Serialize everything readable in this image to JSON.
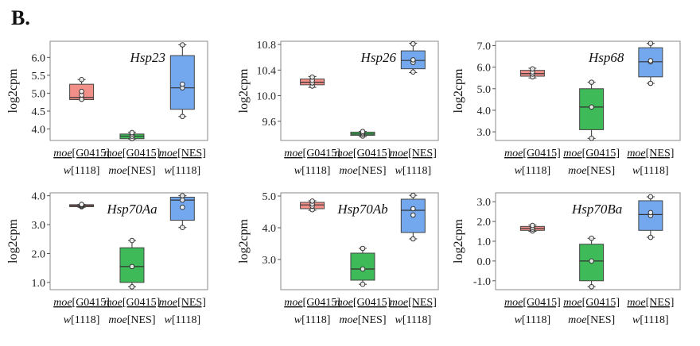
{
  "panel_label": "B.",
  "colors": {
    "red": "#f07b74",
    "green": "#1cae3c",
    "blue": "#5a99ec"
  },
  "chart_data": [
    {
      "type": "box",
      "title": "Hsp23",
      "ylabel": "log2cpm",
      "yticks": [
        "4.0",
        "4.5",
        "5.0",
        "5.5",
        "6.0"
      ],
      "ytick_values": [
        4.0,
        4.5,
        5.0,
        5.5,
        6.0
      ],
      "ylim": [
        3.68,
        6.45
      ],
      "groups": [
        {
          "line1_a": "moe",
          "line1_b": "[G0415]",
          "line2_a": "w",
          "line2_b": "[1118]",
          "color": "red",
          "box": {
            "min": 4.82,
            "q1": 4.82,
            "median": 4.88,
            "q3": 5.25,
            "max": 5.38
          },
          "points": [
            4.83,
            4.95,
            5.05,
            5.38
          ]
        },
        {
          "line1_a": "moe",
          "line1_b": "[G0415]",
          "line2_a": "moe",
          "line2_b": "[NES]",
          "color": "green",
          "box": {
            "min": 3.72,
            "q1": 3.73,
            "median": 3.8,
            "q3": 3.86,
            "max": 3.91
          },
          "points": [
            3.73,
            3.8,
            3.86,
            3.9
          ]
        },
        {
          "line1_a": "moe",
          "line1_b": "[NES]",
          "line2_a": "w",
          "line2_b": "[1118]",
          "color": "blue",
          "box": {
            "min": 4.35,
            "q1": 4.55,
            "median": 5.15,
            "q3": 6.05,
            "max": 6.35
          },
          "points": [
            4.35,
            5.15,
            5.25,
            6.35
          ]
        }
      ]
    },
    {
      "type": "box",
      "title": "Hsp26",
      "ylabel": "log2cpm",
      "yticks": [
        "9.6",
        "10.0",
        "10.4",
        "10.8"
      ],
      "ytick_values": [
        9.6,
        10.0,
        10.4,
        10.8
      ],
      "ylim": [
        9.3,
        10.85
      ],
      "groups": [
        {
          "line1_a": "moe",
          "line1_b": "[G0415]",
          "line2_a": "w",
          "line2_b": "[1118]",
          "color": "red",
          "box": {
            "min": 10.13,
            "q1": 10.17,
            "median": 10.21,
            "q3": 10.26,
            "max": 10.3
          },
          "points": [
            10.15,
            10.2,
            10.24,
            10.29
          ]
        },
        {
          "line1_a": "moe",
          "line1_b": "[G0415]",
          "line2_a": "moe",
          "line2_b": "[NES]",
          "color": "green",
          "box": {
            "min": 9.36,
            "q1": 9.38,
            "median": 9.4,
            "q3": 9.43,
            "max": 9.44
          },
          "points": [
            9.37,
            9.4,
            9.42,
            9.44
          ]
        },
        {
          "line1_a": "moe",
          "line1_b": "[NES]",
          "line2_a": "w",
          "line2_b": "[1118]",
          "color": "blue",
          "box": {
            "min": 10.36,
            "q1": 10.42,
            "median": 10.55,
            "q3": 10.7,
            "max": 10.82
          },
          "points": [
            10.37,
            10.52,
            10.56,
            10.81
          ]
        }
      ]
    },
    {
      "type": "box",
      "title": "Hsp68",
      "ylabel": "log2cpm",
      "yticks": [
        "3.0",
        "4.0",
        "5.0",
        "6.0",
        "7.0"
      ],
      "ytick_values": [
        3.0,
        4.0,
        5.0,
        6.0,
        7.0
      ],
      "ylim": [
        2.6,
        7.2
      ],
      "groups": [
        {
          "line1_a": "moe",
          "line1_b": "[G0415]",
          "line2_a": "w",
          "line2_b": "[1118]",
          "color": "red",
          "box": {
            "min": 5.5,
            "q1": 5.58,
            "median": 5.7,
            "q3": 5.85,
            "max": 5.95
          },
          "points": [
            5.55,
            5.68,
            5.78,
            5.92
          ]
        },
        {
          "line1_a": "moe",
          "line1_b": "[G0415]",
          "line2_a": "moe",
          "line2_b": "[NES]",
          "color": "green",
          "box": {
            "min": 2.7,
            "q1": 3.1,
            "median": 4.15,
            "q3": 5.0,
            "max": 5.3
          },
          "points": [
            2.7,
            4.15,
            5.3
          ]
        },
        {
          "line1_a": "moe",
          "line1_b": "[NES]",
          "line2_a": "w",
          "line2_b": "[1118]",
          "color": "blue",
          "box": {
            "min": 5.25,
            "q1": 5.55,
            "median": 6.25,
            "q3": 6.9,
            "max": 7.1
          },
          "points": [
            5.25,
            6.25,
            6.3,
            7.1
          ]
        }
      ]
    },
    {
      "type": "box",
      "title": "Hsp70Aa",
      "ylabel": "log2cpm",
      "yticks": [
        "1.0",
        "2.0",
        "3.0",
        "4.0"
      ],
      "ytick_values": [
        1.0,
        2.0,
        3.0,
        4.0
      ],
      "ylim": [
        0.75,
        4.1
      ],
      "groups": [
        {
          "line1_a": "moe",
          "line1_b": "[G0415]",
          "line2_a": "w",
          "line2_b": "[1118]",
          "color": "red",
          "box": {
            "min": 3.6,
            "q1": 3.62,
            "median": 3.66,
            "q3": 3.69,
            "max": 3.7
          },
          "points": [
            3.62,
            3.65,
            3.68,
            3.7
          ]
        },
        {
          "line1_a": "moe",
          "line1_b": "[G0415]",
          "line2_a": "moe",
          "line2_b": "[NES]",
          "color": "green",
          "box": {
            "min": 0.85,
            "q1": 1.0,
            "median": 1.55,
            "q3": 2.2,
            "max": 2.45
          },
          "points": [
            0.85,
            1.55,
            2.45
          ]
        },
        {
          "line1_a": "moe",
          "line1_b": "[NES]",
          "line2_a": "w",
          "line2_b": "[1118]",
          "color": "blue",
          "box": {
            "min": 2.9,
            "q1": 3.15,
            "median": 3.85,
            "q3": 3.95,
            "max": 4.0
          },
          "points": [
            2.9,
            3.6,
            3.85,
            4.0
          ]
        }
      ]
    },
    {
      "type": "box",
      "title": "Hsp70Ab",
      "ylabel": "log2cpm",
      "yticks": [
        "3.0",
        "4.0",
        "5.0"
      ],
      "ytick_values": [
        3.0,
        4.0,
        5.0
      ],
      "ylim": [
        2.05,
        5.1
      ],
      "groups": [
        {
          "line1_a": "moe",
          "line1_b": "[G0415]",
          "line2_a": "w",
          "line2_b": "[1118]",
          "color": "red",
          "box": {
            "min": 4.55,
            "q1": 4.6,
            "median": 4.72,
            "q3": 4.8,
            "max": 4.85
          },
          "points": [
            4.57,
            4.68,
            4.75,
            4.84
          ]
        },
        {
          "line1_a": "moe",
          "line1_b": "[G0415]",
          "line2_a": "moe",
          "line2_b": "[NES]",
          "color": "green",
          "box": {
            "min": 2.22,
            "q1": 2.35,
            "median": 2.7,
            "q3": 3.2,
            "max": 3.35
          },
          "points": [
            2.22,
            2.7,
            3.35
          ]
        },
        {
          "line1_a": "moe",
          "line1_b": "[NES]",
          "line2_a": "w",
          "line2_b": "[1118]",
          "color": "blue",
          "box": {
            "min": 3.65,
            "q1": 3.85,
            "median": 4.55,
            "q3": 4.9,
            "max": 5.02
          },
          "points": [
            3.65,
            4.4,
            4.6,
            5.02
          ]
        }
      ]
    },
    {
      "type": "box",
      "title": "Hsp70Ba",
      "ylabel": "log2cpm",
      "yticks": [
        "-1.0",
        "0.0",
        "1.0",
        "2.0",
        "3.0"
      ],
      "ytick_values": [
        -1.0,
        0.0,
        1.0,
        2.0,
        3.0
      ],
      "ylim": [
        -1.45,
        3.45
      ],
      "groups": [
        {
          "line1_a": "moe",
          "line1_b": "[G0415]",
          "line2_a": "w",
          "line2_b": "[1118]",
          "color": "red",
          "box": {
            "min": 1.5,
            "q1": 1.55,
            "median": 1.65,
            "q3": 1.75,
            "max": 1.82
          },
          "points": [
            1.52,
            1.62,
            1.7,
            1.8
          ]
        },
        {
          "line1_a": "moe",
          "line1_b": "[G0415]",
          "line2_a": "moe",
          "line2_b": "[NES]",
          "color": "green",
          "box": {
            "min": -1.3,
            "q1": -1.0,
            "median": 0.0,
            "q3": 0.85,
            "max": 1.15
          },
          "points": [
            -1.3,
            0.0,
            1.15
          ]
        },
        {
          "line1_a": "moe",
          "line1_b": "[NES]",
          "line2_a": "w",
          "line2_b": "[1118]",
          "color": "blue",
          "box": {
            "min": 1.2,
            "q1": 1.55,
            "median": 2.35,
            "q3": 3.05,
            "max": 3.25
          },
          "points": [
            1.2,
            2.3,
            2.45,
            3.25
          ]
        }
      ]
    }
  ]
}
